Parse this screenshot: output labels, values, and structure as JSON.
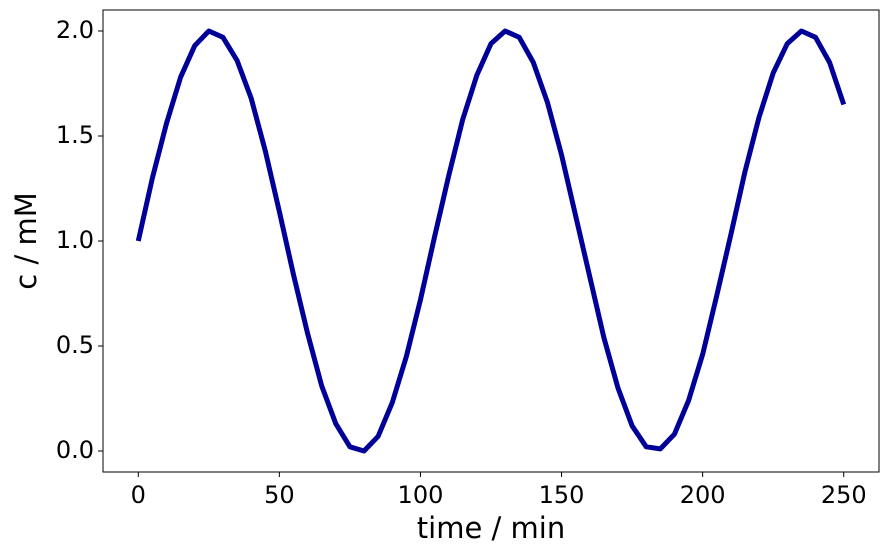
{
  "chart_data": {
    "type": "line",
    "xlabel": "time / min",
    "ylabel": "c / mM",
    "x": [
      0,
      5,
      10,
      15,
      20,
      25,
      30,
      35,
      40,
      45,
      50,
      55,
      60,
      65,
      70,
      75,
      80,
      85,
      90,
      95,
      100,
      105,
      110,
      115,
      120,
      125,
      130,
      135,
      140,
      145,
      150,
      155,
      160,
      165,
      170,
      175,
      180,
      185,
      190,
      195,
      200,
      205,
      210,
      215,
      220,
      225,
      230,
      235,
      240,
      245,
      250
    ],
    "series": [
      {
        "color": "#000099",
        "values": [
          1.0,
          1.3,
          1.56,
          1.78,
          1.93,
          2.0,
          1.97,
          1.86,
          1.68,
          1.43,
          1.14,
          0.84,
          0.56,
          0.31,
          0.13,
          0.02,
          0.0,
          0.07,
          0.23,
          0.45,
          0.72,
          1.02,
          1.31,
          1.58,
          1.79,
          1.94,
          2.0,
          1.97,
          1.85,
          1.66,
          1.41,
          1.12,
          0.83,
          0.54,
          0.3,
          0.12,
          0.02,
          0.01,
          0.08,
          0.24,
          0.46,
          0.74,
          1.03,
          1.33,
          1.59,
          1.8,
          1.94,
          2.0,
          1.97,
          1.85,
          1.65
        ]
      }
    ],
    "xlim": [
      -12.5,
      262.5
    ],
    "xticks": [
      0,
      50,
      100,
      150,
      200,
      250
    ],
    "ylim": [
      -0.1,
      2.1
    ],
    "yticks": [
      {
        "value": 0,
        "label": "0.0"
      },
      {
        "value": 0.5,
        "label": "0.5"
      },
      {
        "value": 1,
        "label": "1.0"
      },
      {
        "value": 1.5,
        "label": "1.5"
      },
      {
        "value": 2,
        "label": "2.0"
      }
    ],
    "grid": false
  }
}
